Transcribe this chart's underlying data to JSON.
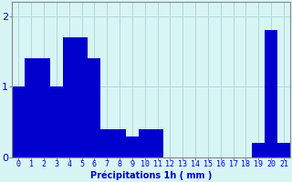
{
  "values": [
    1.0,
    1.4,
    1.4,
    1.0,
    1.7,
    1.7,
    1.4,
    0.4,
    0.4,
    0.3,
    0.4,
    0.4,
    0.0,
    0.0,
    0.0,
    0.0,
    0.0,
    0.0,
    0.0,
    0.2,
    1.8,
    0.2
  ],
  "categories": [
    0,
    1,
    2,
    3,
    4,
    5,
    6,
    7,
    8,
    9,
    10,
    11,
    12,
    13,
    14,
    15,
    16,
    17,
    18,
    19,
    20,
    21
  ],
  "bar_color": "#0000cc",
  "background_color": "#d8f5f5",
  "grid_color": "#b0d8d8",
  "text_color": "#0000cc",
  "xlabel": "Précipitations 1h ( mm )",
  "ylim": [
    0,
    2.2
  ],
  "yticks": [
    0,
    1,
    2
  ],
  "label_fontsize": 7,
  "tick_fontsize": 6
}
